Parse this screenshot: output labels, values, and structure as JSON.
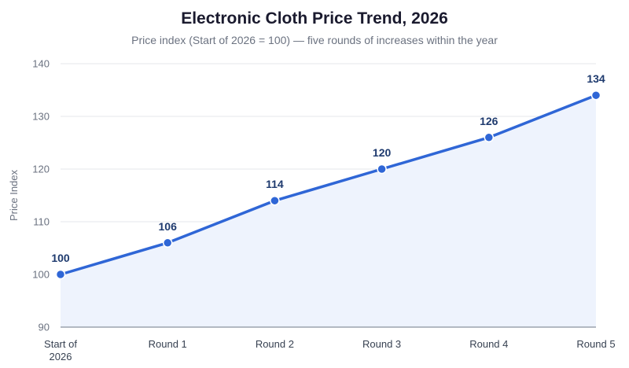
{
  "chart_data": {
    "type": "area",
    "title": "Electronic Cloth Price Trend, 2026",
    "subtitle": "Price index (Start of 2026 = 100) — five rounds of increases within the year",
    "ylabel": "Price Index",
    "xlabel": "",
    "categories": [
      [
        "Start of",
        "2026"
      ],
      [
        "Round 1"
      ],
      [
        "Round 2"
      ],
      [
        "Round 3"
      ],
      [
        "Round 4"
      ],
      [
        "Round 5"
      ]
    ],
    "values": [
      100,
      106,
      114,
      120,
      126,
      134
    ],
    "ylim": [
      90,
      140
    ],
    "yticks": [
      90,
      100,
      110,
      120,
      130,
      140
    ],
    "grid": true,
    "legend": "none",
    "colors": {
      "line": "#2f66d6",
      "fill": "#eef3fd",
      "point": "#2f66d6",
      "label": "#1e3a6e",
      "grid": "#e5e7eb",
      "axis": "#9ca3af"
    }
  }
}
